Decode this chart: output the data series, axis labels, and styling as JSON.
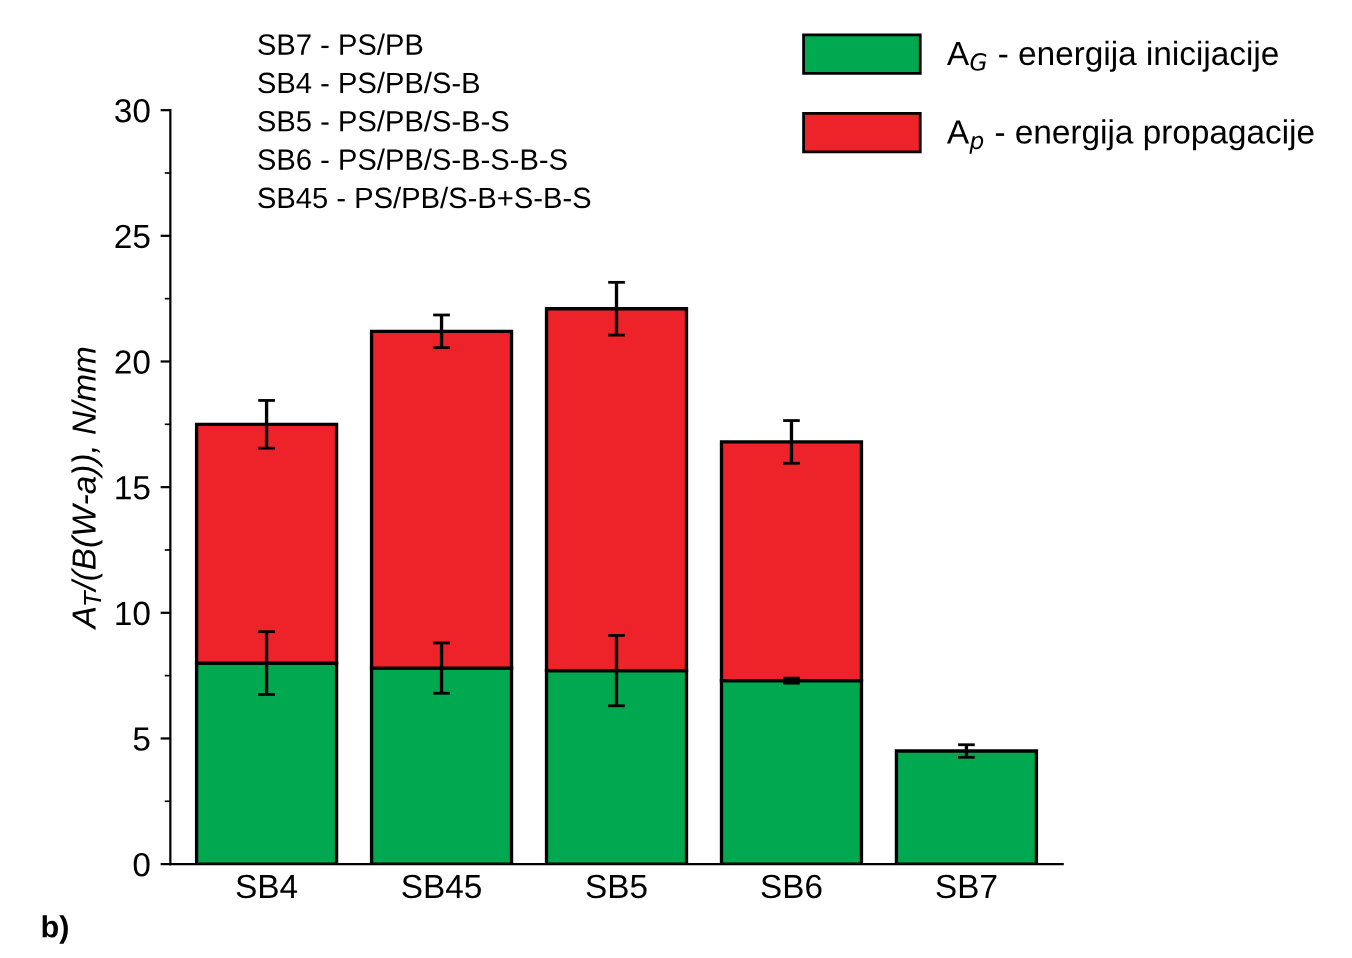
{
  "chart_data": {
    "type": "bar",
    "stacked": true,
    "categories": [
      "SB4",
      "SB45",
      "SB5",
      "SB6",
      "SB7"
    ],
    "series": [
      {
        "name": "A$_{G}$ - energija inicijacije",
        "color": "#00a84f",
        "values": [
          8.0,
          7.8,
          7.7,
          7.3,
          4.5
        ],
        "errors": [
          1.25,
          1.0,
          1.4,
          0.1,
          0.25
        ]
      },
      {
        "name": "A$_{p}$ - energija propagacije",
        "color": "#ee2229",
        "values": [
          9.5,
          13.4,
          14.4,
          9.5,
          null
        ],
        "errors": [
          0.95,
          0.65,
          1.05,
          0.85,
          null
        ]
      }
    ],
    "ylabel": "A$_{T}$/(B(W-a)), N/mm",
    "ylim": [
      0,
      30
    ],
    "yticks": [
      0,
      5,
      10,
      15,
      20,
      25,
      30
    ],
    "legend": "top right",
    "grid": false,
    "annotations": [
      "SB7 - PS/PB",
      "SB4 - PS/PB/S-B",
      "SB5 - PS/PB/S-B-S",
      "SB6 - PS/PB/S-B-S-B-S",
      "SB45 - PS/PB/S-B+S-B-S",
      "b)"
    ]
  }
}
